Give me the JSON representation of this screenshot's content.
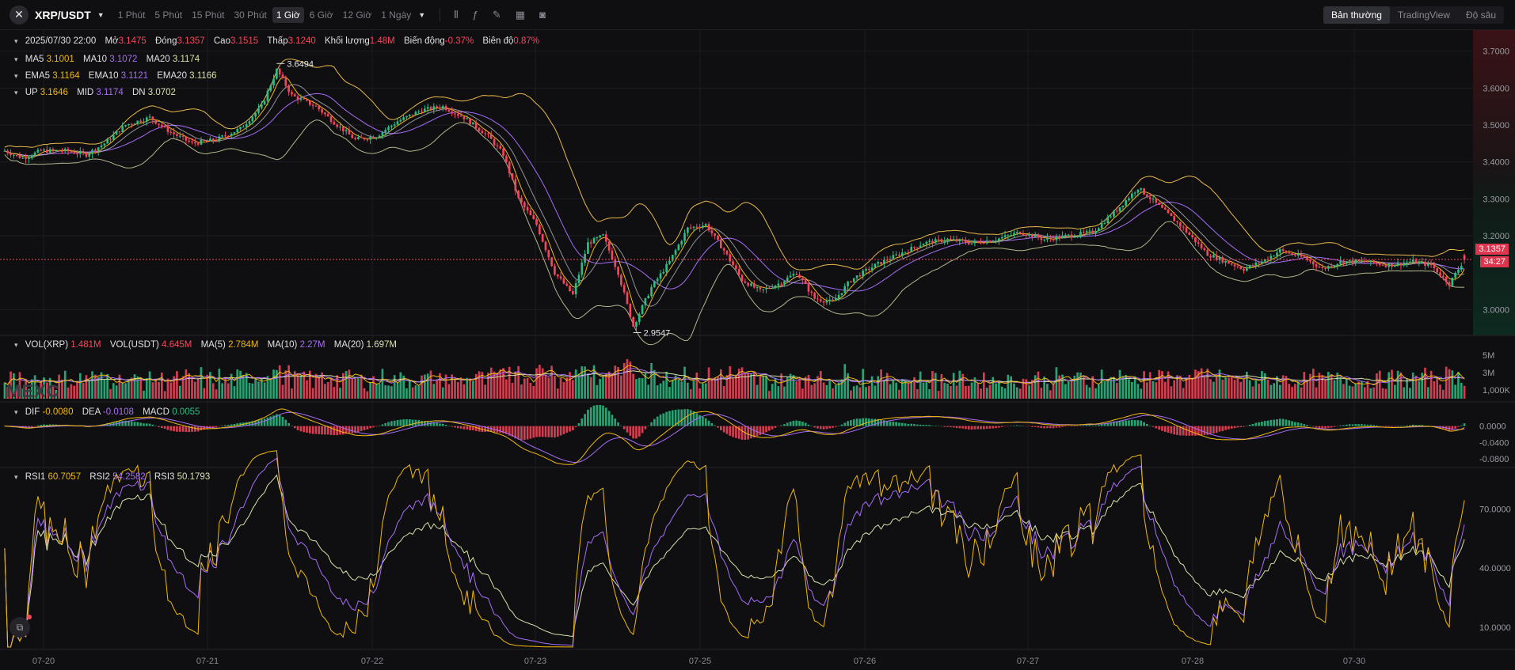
{
  "toolbar": {
    "pair": "XRP/USDT",
    "intervals": [
      "1 Phút",
      "5 Phút",
      "15 Phút",
      "30 Phút",
      "1 Giờ",
      "6 Giờ",
      "12 Giờ",
      "1 Ngày"
    ],
    "active_interval": "1 Giờ",
    "modes": [
      "Bản thường",
      "TradingView",
      "Độ sâu"
    ],
    "active_mode": "Bản thường",
    "icons": [
      "candle-settings-icon",
      "indicator-icon",
      "draw-icon",
      "layout-icon",
      "camera-icon"
    ]
  },
  "info": {
    "datetime": "2025/07/30 22:00",
    "open_label": "Mở",
    "open": "3.1475",
    "close_label": "Đóng",
    "close": "3.1357",
    "high_label": "Cao",
    "high": "3.1515",
    "low_label": "Thấp",
    "low": "3.1240",
    "volume_label": "Khối lượng",
    "volume": "1.48M",
    "change_label": "Biến động",
    "change": "-0.37%",
    "amplitude_label": "Biên độ",
    "amplitude": "0.87%"
  },
  "ma": {
    "ma5_label": "MA5",
    "ma5": "3.1001",
    "ma10_label": "MA10",
    "ma10": "3.1072",
    "ma20_label": "MA20",
    "ma20": "3.1174"
  },
  "ema": {
    "ema5_label": "EMA5",
    "ema5": "3.1164",
    "ema10_label": "EMA10",
    "ema10": "3.1121",
    "ema20_label": "EMA20",
    "ema20": "3.1166"
  },
  "boll": {
    "up_label": "UP",
    "up": "3.1646",
    "mid_label": "MID",
    "mid": "3.1174",
    "dn_label": "DN",
    "dn": "3.0702"
  },
  "vol": {
    "xrp_label": "VOL(XRP)",
    "xrp": "1.481M",
    "usdt_label": "VOL(USDT)",
    "usdt": "4.645M",
    "ma5_label": "MA(5)",
    "ma5": "2.784M",
    "ma10_label": "MA(10)",
    "ma10": "2.27M",
    "ma20_label": "MA(20)",
    "ma20": "1.697M"
  },
  "macd": {
    "dif_label": "DIF",
    "dif": "-0.0080",
    "dea_label": "DEA",
    "dea": "-0.0108",
    "macd_label": "MACD",
    "macd": "0.0055"
  },
  "rsi": {
    "rsi1_label": "RSI1",
    "rsi1": "60.7057",
    "rsi2_label": "RSI2",
    "rsi2": "54.2582",
    "rsi3_label": "RSI3",
    "rsi3": "50.1793"
  },
  "watermark": "MEXC",
  "last_price": {
    "price": "3.1357",
    "countdown": "34:27"
  },
  "colors": {
    "up": "#2ebd85",
    "down": "#f6465d",
    "ma5": "#f0b90b",
    "ma10": "#a66df6",
    "ma20": "#d9e1a8",
    "boll": "#e8b84a",
    "grid": "#1c1c22"
  },
  "chart_data": {
    "type": "candlestick",
    "x_ticks": [
      "07-20",
      "07-21",
      "07-22",
      "07-23",
      "07-25",
      "07-26",
      "07-27",
      "07-28",
      "07-30"
    ],
    "price_axis": {
      "ticks": [
        3.7,
        3.6,
        3.5,
        3.4,
        3.3,
        3.2,
        3.0
      ],
      "tick_labels": [
        "3.7000",
        "3.6000",
        "3.5000",
        "3.4000",
        "3.3000",
        "3.2000",
        "3.0000"
      ],
      "range": [
        2.93,
        3.74
      ]
    },
    "annotations": [
      {
        "text": "3.6494",
        "value": 3.6494,
        "kind": "high"
      },
      {
        "text": "2.9547",
        "value": 2.9547,
        "kind": "low"
      }
    ],
    "price_path": [
      [
        0,
        3.43
      ],
      [
        6,
        3.41
      ],
      [
        12,
        3.43
      ],
      [
        20,
        3.43
      ],
      [
        27,
        3.42
      ],
      [
        33,
        3.45
      ],
      [
        40,
        3.5
      ],
      [
        48,
        3.52
      ],
      [
        55,
        3.48
      ],
      [
        62,
        3.45
      ],
      [
        70,
        3.46
      ],
      [
        78,
        3.49
      ],
      [
        85,
        3.55
      ],
      [
        90,
        3.6494
      ],
      [
        95,
        3.58
      ],
      [
        103,
        3.55
      ],
      [
        110,
        3.5
      ],
      [
        116,
        3.46
      ],
      [
        123,
        3.47
      ],
      [
        130,
        3.51
      ],
      [
        138,
        3.54
      ],
      [
        145,
        3.55
      ],
      [
        152,
        3.52
      ],
      [
        160,
        3.47
      ],
      [
        165,
        3.42
      ],
      [
        170,
        3.3
      ],
      [
        176,
        3.23
      ],
      [
        182,
        3.1
      ],
      [
        188,
        3.04
      ],
      [
        193,
        3.18
      ],
      [
        198,
        3.2
      ],
      [
        203,
        3.1
      ],
      [
        208,
        2.9547
      ],
      [
        214,
        3.06
      ],
      [
        220,
        3.13
      ],
      [
        226,
        3.22
      ],
      [
        232,
        3.23
      ],
      [
        238,
        3.16
      ],
      [
        244,
        3.08
      ],
      [
        250,
        3.05
      ],
      [
        256,
        3.07
      ],
      [
        262,
        3.1
      ],
      [
        268,
        3.03
      ],
      [
        274,
        3.02
      ],
      [
        280,
        3.08
      ],
      [
        288,
        3.12
      ],
      [
        296,
        3.15
      ],
      [
        304,
        3.18
      ],
      [
        312,
        3.19
      ],
      [
        320,
        3.18
      ],
      [
        328,
        3.19
      ],
      [
        336,
        3.21
      ],
      [
        344,
        3.19
      ],
      [
        352,
        3.2
      ],
      [
        360,
        3.21
      ],
      [
        368,
        3.27
      ],
      [
        375,
        3.33
      ],
      [
        382,
        3.28
      ],
      [
        390,
        3.22
      ],
      [
        398,
        3.15
      ],
      [
        404,
        3.13
      ],
      [
        410,
        3.11
      ],
      [
        416,
        3.13
      ],
      [
        422,
        3.16
      ],
      [
        430,
        3.14
      ],
      [
        436,
        3.11
      ],
      [
        442,
        3.13
      ],
      [
        450,
        3.13
      ],
      [
        458,
        3.12
      ],
      [
        466,
        3.13
      ],
      [
        472,
        3.12
      ],
      [
        478,
        3.07
      ],
      [
        483,
        3.1357
      ]
    ],
    "volume_axis": {
      "tick_labels": [
        "5M",
        "3M",
        "1,000K"
      ],
      "ticks": [
        5000000,
        3000000,
        1000000
      ]
    },
    "macd_axis": {
      "tick_labels": [
        "0.0000",
        "-0.0400",
        "-0.0800"
      ],
      "ticks": [
        0,
        -0.04,
        -0.08
      ]
    },
    "rsi_axis": {
      "tick_labels": [
        "70.0000",
        "40.0000",
        "10.0000"
      ],
      "ticks": [
        70,
        40,
        10
      ]
    }
  }
}
